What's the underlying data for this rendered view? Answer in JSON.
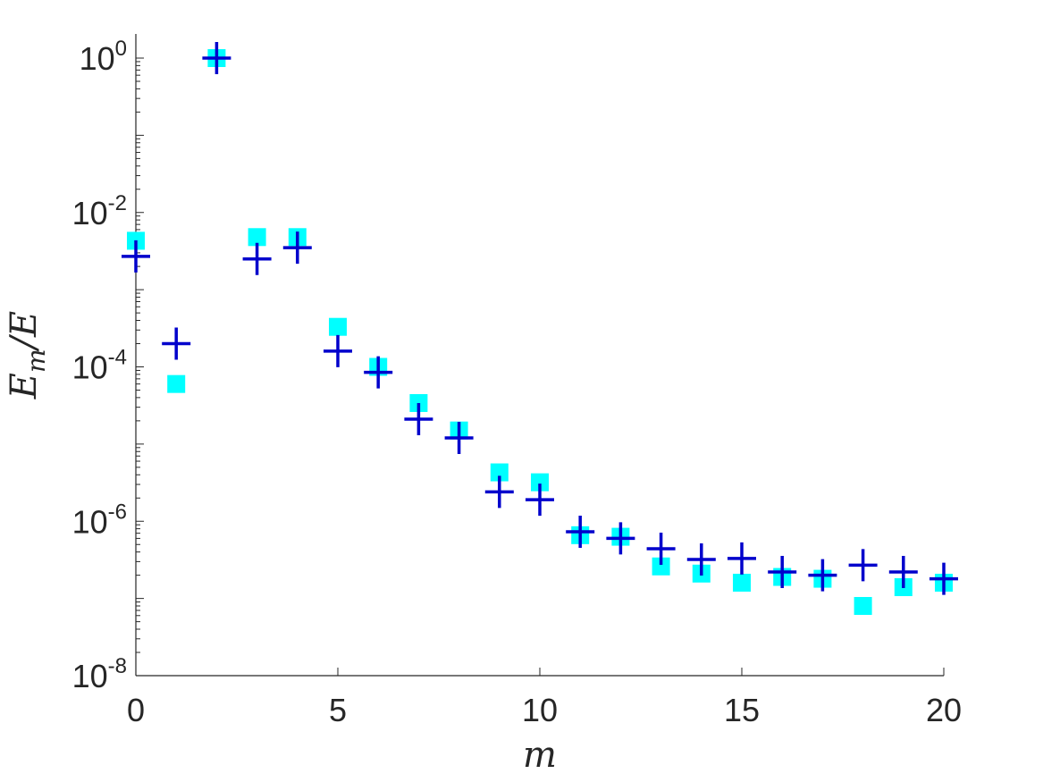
{
  "chart_data": {
    "type": "scatter",
    "title": "",
    "xlabel": "m",
    "ylabel": "E_m/E",
    "ylabel_parts": {
      "main": "E",
      "sub": "m",
      "rest": "/E"
    },
    "xlim": [
      0,
      20
    ],
    "ylim": [
      1e-08,
      1
    ],
    "yscale": "log",
    "grid": false,
    "legend": "none",
    "x_ticks": [
      {
        "value": 0,
        "label": "0"
      },
      {
        "value": 5,
        "label": "5"
      },
      {
        "value": 10,
        "label": "10"
      },
      {
        "value": 15,
        "label": "15"
      },
      {
        "value": 20,
        "label": "20"
      }
    ],
    "y_ticks": [
      {
        "value": 1,
        "base": "10",
        "exp": "0"
      },
      {
        "value": 0.01,
        "base": "10",
        "exp": "-2"
      },
      {
        "value": 0.0001,
        "base": "10",
        "exp": "-4"
      },
      {
        "value": 1e-06,
        "base": "10",
        "exp": "-6"
      },
      {
        "value": 1e-08,
        "base": "10",
        "exp": "-8"
      }
    ],
    "series": [
      {
        "marker": "square",
        "color": "#00FFFF",
        "x": [
          0,
          1,
          2,
          3,
          4,
          5,
          6,
          7,
          8,
          9,
          10,
          11,
          12,
          13,
          14,
          15,
          16,
          17,
          18,
          19,
          20
        ],
        "y": [
          0.0043,
          6e-05,
          1.0,
          0.0048,
          0.0048,
          0.00033,
          0.0001,
          3.4e-05,
          1.5e-05,
          4.3e-06,
          3.2e-06,
          6.6e-07,
          6.3e-07,
          2.6e-07,
          2.1e-07,
          1.6e-07,
          1.9e-07,
          1.8e-07,
          8e-08,
          1.4e-07,
          1.6e-07
        ]
      },
      {
        "marker": "plus",
        "color": "#0000CC",
        "x": [
          0,
          1,
          2,
          3,
          4,
          5,
          6,
          7,
          8,
          9,
          10,
          11,
          12,
          13,
          14,
          15,
          16,
          17,
          18,
          19,
          20
        ],
        "y": [
          0.0027,
          0.0002,
          1.0,
          0.0025,
          0.0035,
          0.00016,
          8.5e-05,
          2.1e-05,
          1.2e-05,
          2.4e-06,
          1.9e-06,
          7.3e-07,
          6e-07,
          4.4e-07,
          3.2e-07,
          3.3e-07,
          2.2e-07,
          2e-07,
          2.7e-07,
          2.2e-07,
          1.8e-07
        ]
      }
    ]
  }
}
